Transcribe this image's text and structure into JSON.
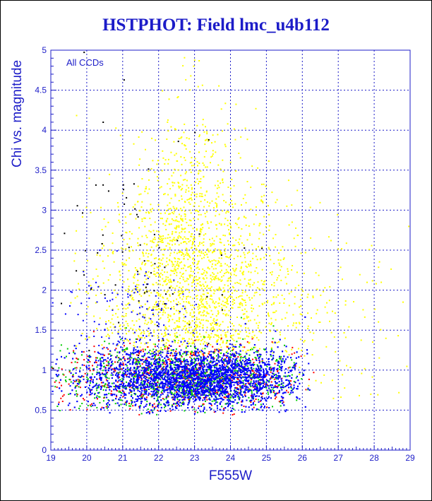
{
  "chart_data": {
    "type": "scatter",
    "title": "HSTPHOT: Field lmc_u4b112",
    "xlabel": "F555W",
    "ylabel": "Chi vs. magnitude",
    "annotation": "All CCDs",
    "xlim": [
      19,
      29
    ],
    "ylim": [
      0,
      5
    ],
    "x_ticks": [
      "19",
      "20",
      "21",
      "22",
      "23",
      "24",
      "25",
      "26",
      "27",
      "28",
      "29"
    ],
    "y_ticks": [
      "0",
      "0.5",
      "1",
      "1.5",
      "2",
      "2.5",
      "3",
      "3.5",
      "4",
      "4.5",
      "5"
    ],
    "grid": true,
    "series": [
      {
        "color": "#ffff00",
        "clusters": [
          {
            "x_range": [
              19.5,
              27.5
            ],
            "x_center": 23.0,
            "x_sd": 1.4,
            "y_center": 1.8,
            "y_sd": 0.75,
            "y_min": 1.2,
            "count": 1700
          },
          {
            "x_range": [
              21.5,
              24.5
            ],
            "x_center": 22.8,
            "x_sd": 0.7,
            "y_center": 3.0,
            "y_sd": 0.8,
            "y_min": 2.0,
            "count": 350
          },
          {
            "x_range": [
              25.0,
              29.0
            ],
            "x_center": 26.5,
            "x_sd": 1.2,
            "y_center": 1.5,
            "y_sd": 0.6,
            "y_min": 0.6,
            "count": 100
          }
        ]
      },
      {
        "color": "#ff0000",
        "clusters": [
          {
            "x_range": [
              19.0,
              26.3
            ],
            "x_center": 22.7,
            "x_sd": 1.7,
            "y_center": 0.92,
            "y_sd": 0.2,
            "y_min": 0.45,
            "count": 700
          }
        ]
      },
      {
        "color": "#00cc00",
        "clusters": [
          {
            "x_range": [
              19.0,
              26.3
            ],
            "x_center": 22.8,
            "x_sd": 1.7,
            "y_center": 0.9,
            "y_sd": 0.2,
            "y_min": 0.45,
            "count": 1000
          }
        ]
      },
      {
        "color": "#0000ff",
        "clusters": [
          {
            "x_range": [
              19.0,
              26.2
            ],
            "x_center": 23.0,
            "x_sd": 1.6,
            "y_center": 0.9,
            "y_sd": 0.18,
            "y_min": 0.45,
            "count": 5000
          },
          {
            "x_range": [
              19.0,
              24.0
            ],
            "x_center": 21.0,
            "x_sd": 1.0,
            "y_center": 1.6,
            "y_sd": 0.4,
            "y_min": 1.2,
            "count": 120
          }
        ]
      },
      {
        "color": "#000000",
        "clusters": [
          {
            "x_range": [
              19.0,
              25.0
            ],
            "x_center": 21.8,
            "x_sd": 1.2,
            "y_center": 2.3,
            "y_sd": 0.9,
            "y_min": 1.0,
            "count": 70
          }
        ]
      }
    ]
  }
}
